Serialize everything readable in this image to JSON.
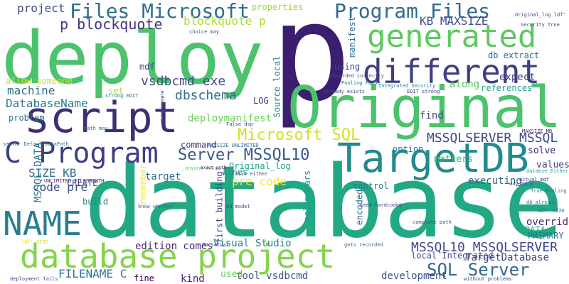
{
  "words": [
    {
      "text": "database",
      "color": "#22a884",
      "vertical": false
    },
    {
      "text": "p",
      "color": "#3b1f6e",
      "vertical": false
    },
    {
      "text": "deploy",
      "color": "#4cc26c",
      "vertical": false
    },
    {
      "text": "Original",
      "color": "#4cc26c",
      "vertical": false
    },
    {
      "text": "script",
      "color": "#3e2f72",
      "vertical": false
    },
    {
      "text": "database project",
      "color": "#84d44b",
      "vertical": false
    },
    {
      "text": "TargetDB",
      "color": "#238a8d",
      "vertical": false
    },
    {
      "text": "different",
      "color": "#3e3f81",
      "vertical": false
    },
    {
      "text": "generated",
      "color": "#5ec962",
      "vertical": false
    },
    {
      "text": "NAME",
      "color": "#287d8e",
      "vertical": false
    },
    {
      "text": "C Program",
      "color": "#3e3f81",
      "vertical": false
    },
    {
      "text": "Files Microsoft",
      "color": "#2e6f8e",
      "vertical": false
    },
    {
      "text": "Program Files",
      "color": "#2f6b8e",
      "vertical": false
    },
    {
      "text": "Microsoft SQL",
      "color": "#d2e21b",
      "vertical": false
    },
    {
      "text": "SQL Server",
      "color": "#31688e",
      "vertical": false
    },
    {
      "text": "Server MSSQL10",
      "color": "#39568c",
      "vertical": false
    },
    {
      "text": "MSSQL10 MSSQLSERVER",
      "color": "#3e4a89",
      "vertical": false
    },
    {
      "text": "MSSQLSERVER MSSQL",
      "color": "#3e4a89",
      "vertical": false
    },
    {
      "text": "DatabaseName",
      "color": "#2a788e",
      "vertical": false
    },
    {
      "text": "p blockquote",
      "color": "#46337e",
      "vertical": false
    },
    {
      "text": "blockquote p",
      "color": "#addc30",
      "vertical": false
    },
    {
      "text": "vsdbcmd exe",
      "color": "#3e4c8a",
      "vertical": false
    },
    {
      "text": "dbschema",
      "color": "#306a8e",
      "vertical": false
    },
    {
      "text": "deploymanifest",
      "color": "#6ccd5a",
      "vertical": false
    },
    {
      "text": "code pre",
      "color": "#3e4989",
      "vertical": false
    },
    {
      "text": "pre code",
      "color": "#fde725",
      "vertical": false
    },
    {
      "text": "SIZE KB",
      "color": "#2d708e",
      "vertical": false
    },
    {
      "text": "KB MAXSIZE",
      "color": "#3d4e8a",
      "vertical": false
    },
    {
      "text": "FILENAME C",
      "color": "#2b758e",
      "vertical": false
    },
    {
      "text": "machine",
      "color": "#2d708e",
      "vertical": false
    },
    {
      "text": "project",
      "color": "#3e4a89",
      "vertical": false
    },
    {
      "text": "Visual Studio",
      "color": "#25848e",
      "vertical": false
    },
    {
      "text": "TargetDatabase",
      "color": "#414487",
      "vertical": false
    },
    {
      "text": "development",
      "color": "#3b528b",
      "vertical": false
    },
    {
      "text": "local Integrated",
      "color": "#3e4a89",
      "vertical": false
    },
    {
      "text": "PRIMARY",
      "color": "#2c728e",
      "vertical": false
    },
    {
      "text": "edition comes",
      "color": "#482576",
      "vertical": false
    },
    {
      "text": "tool vsdbcmd",
      "color": "#3b528b",
      "vertical": false
    },
    {
      "text": "kind",
      "color": "#482475",
      "vertical": false
    },
    {
      "text": "fine",
      "color": "#440154",
      "vertical": false
    },
    {
      "text": "used",
      "color": "#65cb5e",
      "vertical": false
    },
    {
      "text": "expect",
      "color": "#443983",
      "vertical": false
    },
    {
      "text": "along",
      "color": "#5ec962",
      "vertical": false
    },
    {
      "text": "references",
      "color": "#1fa187",
      "vertical": false
    },
    {
      "text": "find",
      "color": "#3e4989",
      "vertical": false
    },
    {
      "text": "values",
      "color": "#433e85",
      "vertical": false
    },
    {
      "text": "solve",
      "color": "#482677",
      "vertical": false
    },
    {
      "text": "matters",
      "color": "#35b779",
      "vertical": false
    },
    {
      "text": "executing",
      "color": "#31688e",
      "vertical": false
    },
    {
      "text": "override",
      "color": "#481f70",
      "vertical": false
    },
    {
      "text": "DATA",
      "color": "#22a884",
      "vertical": false
    },
    {
      "text": "option",
      "color": "#2a788e",
      "vertical": false
    },
    {
      "text": "control",
      "color": "#2a788e",
      "vertical": false
    },
    {
      "text": "lines",
      "color": "#1f978b",
      "vertical": false
    },
    {
      "text": "Original_log",
      "color": "#1fa187",
      "vertical": false
    },
    {
      "text": "target",
      "color": "#2d708e",
      "vertical": false
    },
    {
      "text": "build",
      "color": "#24868e",
      "vertical": false
    },
    {
      "text": "CREATE",
      "color": "#3b528b",
      "vertical": false
    },
    {
      "text": "problem",
      "color": "#2a788e",
      "vertical": false
    },
    {
      "text": "allow someone",
      "color": "#d2e21b",
      "vertical": false
    },
    {
      "text": "mdf",
      "color": "#3e4a89",
      "vertical": false
    },
    {
      "text": "set",
      "color": "#b5de2b",
      "vertical": false
    },
    {
      "text": "LOG",
      "color": "#46327e",
      "vertical": false
    },
    {
      "text": "command",
      "color": "#443983",
      "vertical": false
    },
    {
      "text": "using",
      "color": "#3e4989",
      "vertical": false
    },
    {
      "text": "properties",
      "color": "#a0da39",
      "vertical": false
    },
    {
      "text": "db extract",
      "color": "#31688e",
      "vertical": false
    },
    {
      "text": "manifest",
      "color": "#2d708e",
      "vertical": true
    },
    {
      "text": "Source local",
      "color": "#24868e",
      "vertical": true
    },
    {
      "text": "MSSQL DATA",
      "color": "#2a788e",
      "vertical": true
    },
    {
      "text": "sqlcmdvars",
      "color": "#1f9e89",
      "vertical": true
    },
    {
      "text": "first building",
      "color": "#3e4989",
      "vertical": true
    },
    {
      "text": "encoded",
      "color": "#2c728e",
      "vertical": true
    },
    {
      "text": "remember",
      "color": "#fde725",
      "vertical": true
    },
    {
      "text": "choice may",
      "color": "#3b528b",
      "vertical": false
    },
    {
      "text": "Original_log ldf'",
      "color": "#3e4989",
      "vertical": false
    },
    {
      "text": "Security True",
      "color": "#3e4989",
      "vertical": false
    },
    {
      "text": "recorded correctly",
      "color": "#3b528b",
      "vertical": false
    },
    {
      "text": "Pooling False",
      "color": "#287d8e",
      "vertical": false
    },
    {
      "text": "already exists",
      "color": "#3e4989",
      "vertical": false
    },
    {
      "text": "Integrated Security",
      "color": "#287d8e",
      "vertical": false
    },
    {
      "text": "EDIT strong",
      "color": "#433e85",
      "vertical": false
    },
    {
      "text": "strong EDIT",
      "color": "#2c728e",
      "vertical": false
    },
    {
      "text": "exact path",
      "color": "#440154",
      "vertical": false
    },
    {
      "text": "False dsp",
      "color": "#3e4989",
      "vertical": false
    },
    {
      "text": "path may",
      "color": "#2a788e",
      "vertical": false
    },
    {
      "text": "MAXSIZE MB",
      "color": "#482173",
      "vertical": false
    },
    {
      "text": "setvar DefaultDataPath",
      "color": "#2a788e",
      "vertical": false
    },
    {
      "text": "MAXSIZE UNLIMITED",
      "color": "#31688e",
      "vertical": false
    },
    {
      "text": "UNLIMITED FILEGROWTH",
      "color": "#482677",
      "vertical": false
    },
    {
      "text": "anyone using",
      "color": "#65cb5e",
      "vertical": false
    },
    {
      "text": "fails either",
      "color": "#3e4989",
      "vertical": false
    },
    {
      "text": "databse Either",
      "color": "#1fa187",
      "vertical": false
    },
    {
      "text": "actual mdf",
      "color": "#3e4989",
      "vertical": false
    },
    {
      "text": "way back",
      "color": "#3b528b",
      "vertical": false
    },
    {
      "text": "True Pooling",
      "color": "#2a788e",
      "vertical": false
    },
    {
      "text": "db already",
      "color": "#2d708e",
      "vertical": false
    },
    {
      "text": "mdf' SIZE",
      "color": "#2d708e",
      "vertical": false
    },
    {
      "text": "know whether",
      "color": "#2c728e",
      "vertical": false
    },
    {
      "text": "dd model",
      "color": "#3e4989",
      "vertical": false
    },
    {
      "text": "seem hardcoded",
      "color": "#3e4a89",
      "vertical": false
    },
    {
      "text": "complete path",
      "color": "#3e4a89",
      "vertical": false
    },
    {
      "text": "ldf' SIZE",
      "color": "#d2e21b",
      "vertical": false
    },
    {
      "text": "GO setvar",
      "color": "#3e4989",
      "vertical": false
    },
    {
      "text": "gets recorded",
      "color": "#31688e",
      "vertical": false
    },
    {
      "text": "deployment fails",
      "color": "#3e4989",
      "vertical": false
    },
    {
      "text": "without problems",
      "color": "#3e4989",
      "vertical": false
    },
    {
      "text": "MB FILEGROWTH",
      "color": "#3e4989",
      "vertical": true
    }
  ]
}
